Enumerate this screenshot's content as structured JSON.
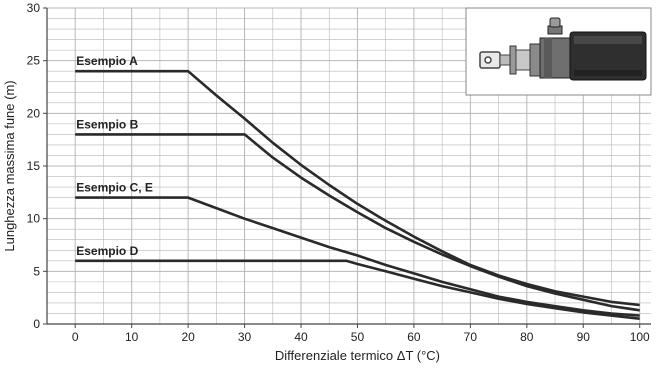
{
  "chart_data": {
    "type": "line",
    "xlabel": "Differenziale termico ΔT (°C)",
    "ylabel": "Lunghezza massima fune (m)",
    "xlim": [
      -5,
      102
    ],
    "ylim": [
      0,
      30
    ],
    "x_ticks": [
      0,
      10,
      20,
      30,
      40,
      50,
      60,
      70,
      80,
      90,
      100
    ],
    "y_ticks": [
      0,
      5,
      10,
      15,
      20,
      25,
      30
    ],
    "grid": true,
    "colors": {
      "line": "#2a2a2a",
      "grid": "#b8b8b8",
      "axis": "#444444",
      "text": "#222222"
    },
    "series": [
      {
        "name": "Esempio A",
        "x": [
          0,
          20,
          25,
          30,
          35,
          40,
          45,
          50,
          55,
          60,
          65,
          70,
          75,
          80,
          85,
          90,
          95,
          100
        ],
        "y": [
          24,
          24,
          21.7,
          19.5,
          17.2,
          15.1,
          13.2,
          11.4,
          9.8,
          8.3,
          6.9,
          5.6,
          4.6,
          3.8,
          3.1,
          2.6,
          2.1,
          1.8
        ]
      },
      {
        "name": "Esempio B",
        "x": [
          0,
          30,
          35,
          40,
          45,
          50,
          55,
          60,
          65,
          70,
          75,
          80,
          85,
          90,
          95,
          100
        ],
        "y": [
          18,
          18,
          15.8,
          13.9,
          12.2,
          10.6,
          9.1,
          7.8,
          6.6,
          5.5,
          4.5,
          3.6,
          2.9,
          2.3,
          1.7,
          1.3
        ]
      },
      {
        "name": "Esempio C, E",
        "x": [
          0,
          20,
          25,
          30,
          35,
          40,
          45,
          50,
          55,
          60,
          65,
          70,
          75,
          80,
          85,
          90,
          95,
          100
        ],
        "y": [
          12,
          12,
          11,
          10,
          9.1,
          8.2,
          7.3,
          6.5,
          5.6,
          4.8,
          4,
          3.3,
          2.6,
          2.1,
          1.7,
          1.3,
          1,
          0.8
        ]
      },
      {
        "name": "Esempio D",
        "x": [
          0,
          48,
          50,
          55,
          60,
          65,
          70,
          75,
          80,
          85,
          90,
          95,
          100
        ],
        "y": [
          6,
          6,
          5.7,
          5,
          4.3,
          3.6,
          3,
          2.4,
          1.9,
          1.5,
          1.1,
          0.8,
          0.5
        ]
      }
    ]
  },
  "inset": {
    "icon": "rope-switch-device-icon"
  }
}
